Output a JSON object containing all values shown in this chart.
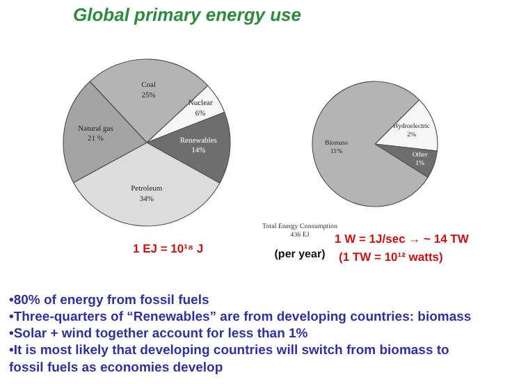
{
  "chart_data": [
    {
      "type": "pie",
      "title": "Global primary energy use",
      "categories": [
        "Coal",
        "Nuclear",
        "Renewables",
        "Petroleum",
        "Natural gas"
      ],
      "values": [
        25,
        6,
        14,
        34,
        21
      ],
      "colors": [
        "#b4b4b4",
        "#f6f6f6",
        "#6e6e6e",
        "#dcdcdc",
        "#a4a4a4"
      ],
      "value_labels": [
        "25%",
        "6%",
        "14%",
        "34%",
        "21 %"
      ],
      "annotations": [
        "Total Energy Consumption\n436 EJ",
        "(per year)",
        "1 EJ = 10¹⁸ J",
        "1 W = 1J/sec → ~ 14 TW",
        "(1 TW = 10¹² watts)",
        "•80% of energy from fossil fuels",
        "•Three-quarters of “Renewables” are from developing countries: biomass",
        "•Solar + wind together account for less than 1%",
        "•It is most likely that developing countries will switch from biomass to\n  fossil fuels as economies develop"
      ]
    },
    {
      "type": "pie",
      "categories": [
        "Hydroelectric",
        "Other",
        "Biomass"
      ],
      "values": [
        2,
        1,
        11
      ],
      "colors": [
        "#f6f6f6",
        "#6e6e6e",
        "#b4b4b4"
      ],
      "value_labels": [
        "2%",
        "1%",
        "11%"
      ]
    }
  ]
}
